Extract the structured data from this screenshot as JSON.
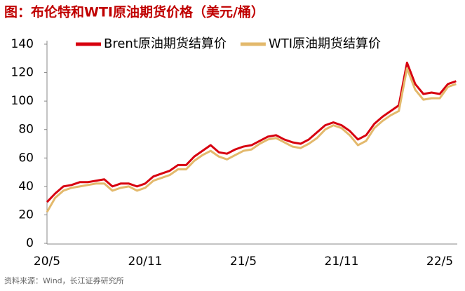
{
  "chart_data": {
    "type": "line",
    "title": "图：布伦特和WTI原油期货价格（美元/桶）",
    "source": "资料来源：Wind，长江证券研究所",
    "categories": [
      "20/5",
      null,
      null,
      null,
      null,
      null,
      null,
      null,
      null,
      null,
      null,
      null,
      "20/11",
      null,
      null,
      null,
      null,
      null,
      null,
      null,
      null,
      null,
      null,
      null,
      "21/5",
      null,
      null,
      null,
      null,
      null,
      null,
      null,
      null,
      null,
      null,
      null,
      "21/11",
      null,
      null,
      null,
      null,
      null,
      null,
      null,
      null,
      null,
      null,
      null,
      "22/5",
      null,
      null
    ],
    "series": [
      {
        "name": "Brent原油期货结算价",
        "color": "#d7000f",
        "values": [
          29,
          35,
          40,
          41,
          43,
          43,
          44,
          45,
          40,
          42,
          42,
          40,
          42,
          47,
          49,
          51,
          55,
          55,
          61,
          65,
          69,
          64,
          63,
          66,
          68,
          69,
          72,
          75,
          76,
          73,
          71,
          70,
          73,
          78,
          83,
          85,
          83,
          79,
          73,
          76,
          84,
          89,
          93,
          97,
          127,
          112,
          105,
          106,
          105,
          112,
          114
        ]
      },
      {
        "name": "WTI原油期货结算价",
        "color": "#e3b96c",
        "values": [
          22,
          32,
          37,
          39,
          40,
          41,
          42,
          42,
          37,
          39,
          40,
          37,
          39,
          44,
          46,
          48,
          52,
          52,
          58,
          62,
          65,
          61,
          59,
          62,
          65,
          66,
          70,
          73,
          74,
          71,
          68,
          67,
          70,
          74,
          80,
          83,
          81,
          76,
          69,
          72,
          81,
          86,
          90,
          93,
          123,
          108,
          101,
          102,
          102,
          110,
          112
        ]
      }
    ],
    "ylim": [
      0,
      140
    ],
    "yticks": [
      0,
      20,
      40,
      60,
      80,
      100,
      120,
      140
    ],
    "legend": "top",
    "grid": false
  }
}
